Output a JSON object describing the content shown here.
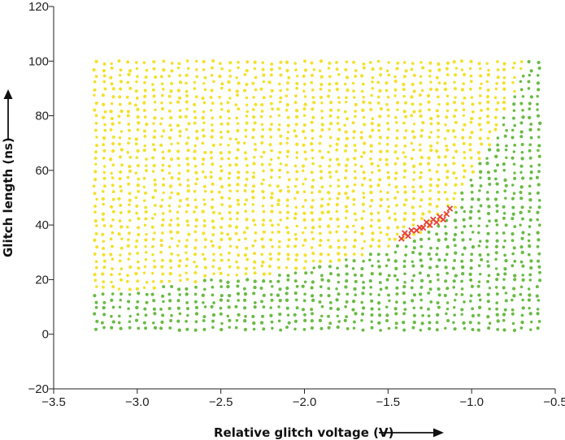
{
  "chart_data": {
    "type": "scatter",
    "title": "",
    "xlabel": "Relative glitch voltage (V)",
    "ylabel": "Glitch length (ns)",
    "xlim": [
      -3.5,
      -0.5
    ],
    "ylim": [
      -20,
      120
    ],
    "xticks": [
      -3.5,
      -3.0,
      -2.5,
      -2.0,
      -1.5,
      -1.0,
      -0.5
    ],
    "xtick_labels": [
      "−3.5",
      "−3.0",
      "−2.5",
      "−2.0",
      "−1.5",
      "−1.0",
      "−0.5"
    ],
    "yticks": [
      -20,
      0,
      20,
      40,
      60,
      80,
      100,
      120
    ],
    "ytick_labels": [
      "−20",
      "0",
      "20",
      "40",
      "60",
      "80",
      "100",
      "120"
    ],
    "grid": false,
    "legend": "none",
    "colors": {
      "no_effect": "#f2e12e",
      "reset": "#6abb45",
      "success": "#e8413a",
      "axis": "#222222"
    },
    "x_grid": {
      "start": -3.25,
      "stop": -0.58,
      "step": 0.05
    },
    "y_grid": {
      "start": 2,
      "stop": 101,
      "step": 2.5
    },
    "reset_boundary": [
      {
        "x": -3.25,
        "y": 16
      },
      {
        "x": -3.0,
        "y": 16
      },
      {
        "x": -2.55,
        "y": 20
      },
      {
        "x": -2.2,
        "y": 22
      },
      {
        "x": -1.85,
        "y": 26
      },
      {
        "x": -1.6,
        "y": 30
      },
      {
        "x": -1.45,
        "y": 33
      },
      {
        "x": -1.3,
        "y": 37
      },
      {
        "x": -1.1,
        "y": 47
      },
      {
        "x": -0.98,
        "y": 60
      },
      {
        "x": -0.88,
        "y": 70
      },
      {
        "x": -0.75,
        "y": 88
      },
      {
        "x": -0.68,
        "y": 100
      },
      {
        "x": -0.58,
        "y": 100
      }
    ],
    "series": [
      {
        "category": "success",
        "points": [
          {
            "x": -1.42,
            "y": 35
          },
          {
            "x": -1.4,
            "y": 37
          },
          {
            "x": -1.38,
            "y": 36
          },
          {
            "x": -1.36,
            "y": 38
          },
          {
            "x": -1.33,
            "y": 38
          },
          {
            "x": -1.31,
            "y": 39
          },
          {
            "x": -1.29,
            "y": 39
          },
          {
            "x": -1.27,
            "y": 41
          },
          {
            "x": -1.25,
            "y": 40
          },
          {
            "x": -1.23,
            "y": 42
          },
          {
            "x": -1.21,
            "y": 41
          },
          {
            "x": -1.19,
            "y": 43
          },
          {
            "x": -1.17,
            "y": 42
          },
          {
            "x": -1.15,
            "y": 44
          },
          {
            "x": -1.13,
            "y": 46
          }
        ]
      }
    ]
  }
}
